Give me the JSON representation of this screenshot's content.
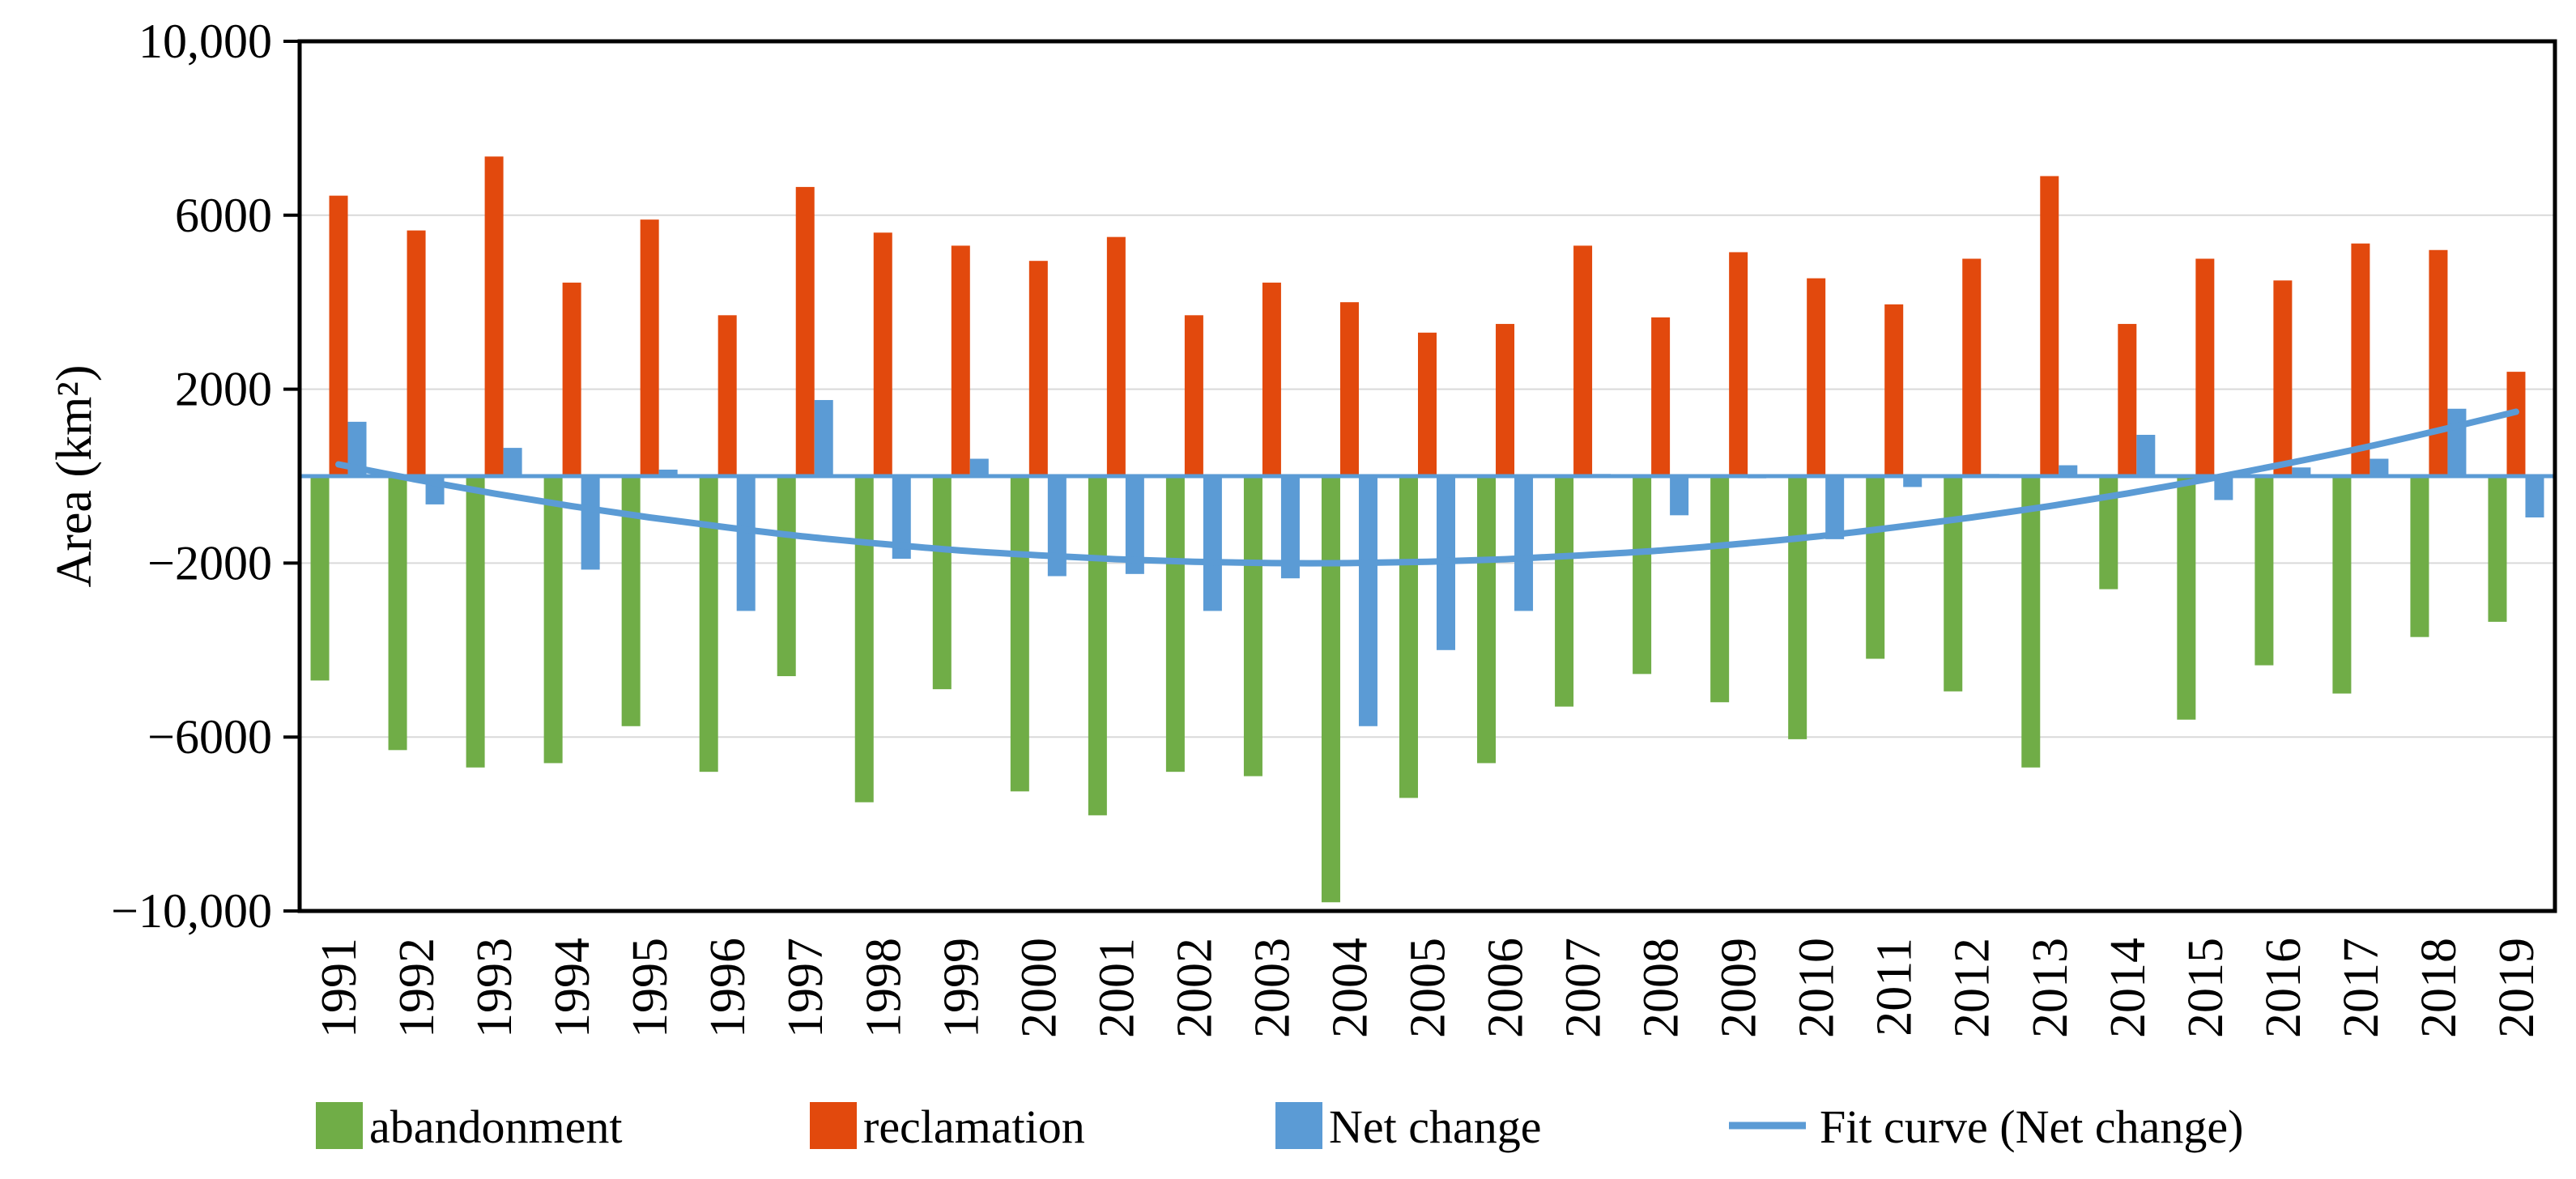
{
  "figure": {
    "background": "#FFFFFF"
  },
  "colors": {
    "abandonment": "#70AD47",
    "reclamation": "#E2490D",
    "net_change": "#5B9BD5",
    "fit_curve": "#5B9BD5",
    "zero_axis": "#5B9BD5",
    "gridline": "#D9D9D9",
    "frame": "#000000",
    "tick": "#000000"
  },
  "chart_data": {
    "type": "bar",
    "title": "",
    "xlabel": "",
    "ylabel": "Area (km²)",
    "ylim": [
      -10000,
      10000
    ],
    "grid": true,
    "legend_position": "bottom",
    "y_ticks": [
      {
        "value": 10000,
        "label": "10,000"
      },
      {
        "value": 6000,
        "label": "6000"
      },
      {
        "value": 2000,
        "label": "2000"
      },
      {
        "value": -2000,
        "label": "−2000"
      },
      {
        "value": -6000,
        "label": "−6000"
      },
      {
        "value": -10000,
        "label": "−10,000"
      }
    ],
    "categories": [
      "1991",
      "1992",
      "1993",
      "1994",
      "1995",
      "1996",
      "1997",
      "1998",
      "1999",
      "2000",
      "2001",
      "2002",
      "2003",
      "2004",
      "2005",
      "2006",
      "2007",
      "2008",
      "2009",
      "2010",
      "2011",
      "2012",
      "2013",
      "2014",
      "2015",
      "2016",
      "2017",
      "2018",
      "2019"
    ],
    "series": [
      {
        "name": "abandonment",
        "type": "bar",
        "color": "#70AD47",
        "values": [
          -4700,
          -6300,
          -6700,
          -6600,
          -5750,
          -6800,
          -4600,
          -7500,
          -4900,
          -7250,
          -7800,
          -6800,
          -6900,
          -9800,
          -7400,
          -6600,
          -5300,
          -4550,
          -5200,
          -6050,
          -4200,
          -4950,
          -6700,
          -2600,
          -5600,
          -4350,
          -5000,
          -3700,
          -3350
        ]
      },
      {
        "name": "reclamation",
        "type": "bar",
        "color": "#E2490D",
        "values": [
          6450,
          5650,
          7350,
          4450,
          5900,
          3700,
          6650,
          5600,
          5300,
          4950,
          5500,
          3700,
          4450,
          4000,
          3300,
          3500,
          5300,
          3650,
          5150,
          4550,
          3950,
          5000,
          6900,
          3500,
          5000,
          4500,
          5350,
          5200,
          2400
        ]
      },
      {
        "name": "Net change",
        "type": "bar",
        "color": "#5B9BD5",
        "values": [
          1250,
          -650,
          650,
          -2150,
          150,
          -3100,
          1750,
          -1900,
          400,
          -2300,
          -2250,
          -3100,
          -2350,
          -5750,
          -4000,
          -3100,
          50,
          -900,
          -50,
          -1450,
          -250,
          50,
          250,
          950,
          -550,
          200,
          400,
          1550,
          -950
        ]
      },
      {
        "name": "Fit curve (Net change)",
        "type": "line",
        "color": "#5B9BD5",
        "values": [
          270,
          -80,
          -400,
          -690,
          -950,
          -1180,
          -1390,
          -1560,
          -1710,
          -1820,
          -1910,
          -1970,
          -2000,
          -2000,
          -1970,
          -1910,
          -1820,
          -1710,
          -1560,
          -1390,
          -1180,
          -950,
          -690,
          -400,
          -80,
          270,
          640,
          1050,
          1480
        ]
      }
    ],
    "legend": [
      "abandonment",
      "reclamation",
      "Net change",
      "Fit curve (Net change)"
    ]
  }
}
